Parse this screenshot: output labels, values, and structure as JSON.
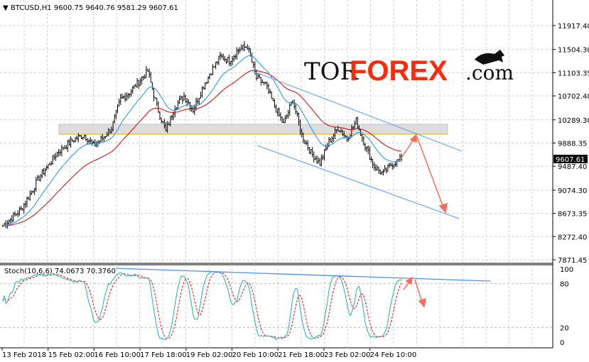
{
  "header": {
    "symbol": "BTCUSD,H1",
    "ohlc": "9600.75 9640.76 9581.29 9607.61"
  },
  "logo": {
    "text_dark": "TOR",
    "text_red": "FOREX",
    "suffix": ".com"
  },
  "colors": {
    "bars": "#000000",
    "ma_fast": "#1e90ff",
    "ma_slow": "#e00000",
    "stoch_main": "#20b2aa",
    "stoch_signal": "#ff0000",
    "trend": "#4a90ff",
    "arrows": "#ff6a5a",
    "zone": "#d8d8d8",
    "zone_line": "#f0c040"
  },
  "chart_data": [
    {
      "type": "ohlc",
      "title": "BTCUSD,H1",
      "timeframe": "H1",
      "last_price": "9607.61",
      "y_ticks": [
        "11917.40",
        "11504.30",
        "11103.35",
        "10702.40",
        "10289.30",
        "9888.35",
        "9487.40",
        "9074.30",
        "8673.35",
        "8272.40",
        "7871.45"
      ],
      "x_ticks": [
        "13 Feb 2018",
        "15 Feb 02:00",
        "16 Feb 10:00",
        "17 Feb 18:00",
        "19 Feb 02:00",
        "20 Feb 10:00",
        "21 Feb 18:00",
        "23 Feb 02:00",
        "24 Feb 10:00"
      ],
      "closes_6h": [
        8460,
        8600,
        8740,
        9000,
        9290,
        9500,
        9720,
        9850,
        9970,
        10030,
        9845,
        9970,
        10150,
        10640,
        10765,
        10950,
        11130,
        10520,
        10090,
        10520,
        10700,
        10460,
        10825,
        11130,
        11380,
        11315,
        11500,
        11560,
        11010,
        10890,
        10520,
        10210,
        10640,
        10030,
        9720,
        9540,
        9910,
        10150,
        9970,
        10270,
        9845,
        9480,
        9355,
        9540,
        9607.61
      ],
      "moving_averages": [
        "fast (blue)",
        "slow (red)"
      ],
      "support_zone": [
        10020,
        10180
      ],
      "grid": true
    },
    {
      "type": "line",
      "title": "Stoch(10,6,6) 74.0673 70.3760",
      "indicator": "Stoch(10,6,6)",
      "main": "74.0673",
      "signal": "70.3760",
      "y_ticks": [
        "100",
        "80",
        "20",
        "0"
      ],
      "ylim": [
        0,
        100
      ]
    }
  ]
}
